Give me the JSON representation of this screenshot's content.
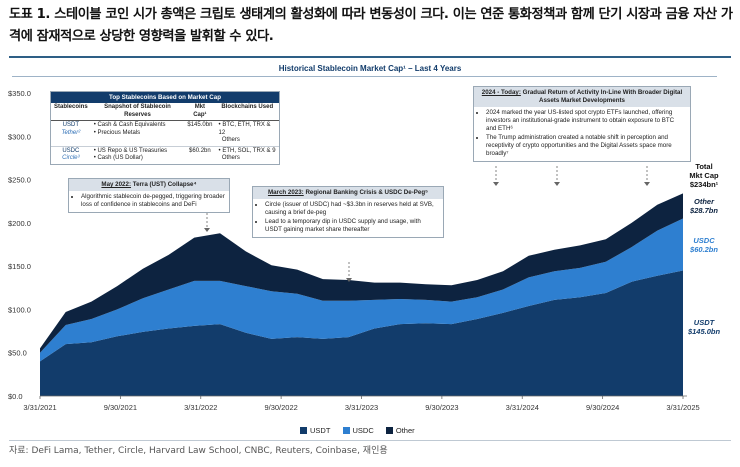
{
  "figure": {
    "title": "도표 1. 스테이블 코인 시가 총액은 크립토 생태계의 활성화에 따라 변동성이 크다. 이는 연준 통화정책과 함께 단기 시장과 금융 자산 가격에 잠재적으로 상당한 영향력을 발휘할 수 있다.",
    "source": "자료: DeFi Lama, Tether, Circle, Harvard Law School, CNBC, Reuters, Coinbase, 재인용"
  },
  "chart_data": {
    "type": "area",
    "stacked": true,
    "title": "Historical Stablecoin Market Cap¹ – Last 4 Years",
    "ylim": [
      0,
      350
    ],
    "yticks": [
      "$0.0",
      "$50.0",
      "$100.0",
      "$150.0",
      "$200.0",
      "$250.0",
      "$300.0",
      "$350.0"
    ],
    "xticks": [
      "3/31/2021",
      "9/30/2021",
      "3/31/2022",
      "9/30/2022",
      "3/31/2023",
      "9/30/2023",
      "3/31/2024",
      "9/30/2024",
      "3/31/2025"
    ],
    "x": [
      "3/31/2021",
      "5/31/2021",
      "7/31/2021",
      "9/30/2021",
      "11/30/2021",
      "1/31/2022",
      "3/31/2022",
      "4/30/2022",
      "5/31/2022",
      "7/31/2022",
      "9/30/2022",
      "11/30/2022",
      "1/31/2023",
      "3/31/2023",
      "5/31/2023",
      "7/31/2023",
      "9/30/2023",
      "11/30/2023",
      "1/31/2024",
      "3/31/2024",
      "5/31/2024",
      "7/31/2024",
      "9/30/2024",
      "11/30/2024",
      "1/31/2025",
      "3/31/2025"
    ],
    "series": [
      {
        "name": "USDT",
        "color": "#123c6b",
        "values": [
          40,
          60,
          62,
          69,
          74,
          78,
          81,
          83,
          73,
          66,
          68,
          66,
          68,
          78,
          83,
          84,
          83,
          89,
          96,
          104,
          111,
          114,
          119,
          132,
          139,
          145
        ]
      },
      {
        "name": "USDC",
        "color": "#2e7fd0",
        "values": [
          10,
          22,
          27,
          31,
          39,
          45,
          52,
          50,
          54,
          55,
          50,
          44,
          42,
          33,
          29,
          27,
          26,
          25,
          27,
          33,
          33,
          34,
          36,
          40,
          52,
          60
        ]
      },
      {
        "name": "Other",
        "color": "#0d2340",
        "values": [
          5,
          15,
          20,
          27,
          34,
          40,
          50,
          55,
          40,
          30,
          28,
          25,
          24,
          20,
          19,
          18,
          19,
          20,
          21,
          25,
          25,
          26,
          26,
          28,
          30,
          29
        ]
      }
    ],
    "legend": [
      "USDT",
      "USDC",
      "Other"
    ],
    "legend_position": "bottom"
  },
  "table": {
    "title": "Top Stablecoins Based on Market Cap",
    "headers": [
      "Stablecoins",
      "Snapshot of Stablecoin Reserves",
      "Mkt Cap¹",
      "Blockchains Used"
    ],
    "rows": [
      {
        "coin": "USDT",
        "issuer": "Tether²",
        "reserves_1": "Cash & Cash Equivalents",
        "reserves_2": "Precious Metals",
        "cap": "$145.0bn",
        "chains_1": "BTC, ETH, TRX & 12",
        "chains_2": "Others"
      },
      {
        "coin": "USDC",
        "issuer": "Circle³",
        "reserves_1": "US Repo & US Treasuries",
        "reserves_2": "Cash (US Dollar)",
        "cap": "$60.2bn",
        "chains_1": "ETH, SOL, TRX & 9",
        "chains_2": "Others"
      }
    ]
  },
  "callouts": {
    "may2022": {
      "title": "May 2022:",
      "title_rest": "Terra (UST) Collapse⁴",
      "bullets": [
        "Algorithmic stablecoin de-pegged, triggering broader loss of confidence in stablecoins and DeFi"
      ]
    },
    "mar2023": {
      "title": "March 2023:",
      "title_rest": "Regional Banking Crisis & USDC De-Peg⁵",
      "bullets": [
        "Circle (issuer of USDC) had ~$3.3bn in reserves held at SVB, causing a brief de-peg",
        "Lead to a temporary dip in USDC supply and usage, with USDT gaining market share thereafter"
      ]
    },
    "y2024": {
      "title": "2024 - Today:",
      "title_rest": "Gradual Return of Activity In-Line With Broader Digital Assets Market Developments",
      "bullets": [
        "2024 marked the year US-listed spot crypto ETFs launched, offering investors an institutional-grade instrument to obtain exposure to BTC and ETH⁶",
        "The Trump administration created a notable shift in perception and receptivity of crypto opportunities and the Digital Assets space more broadly⁷"
      ]
    }
  },
  "annotations": {
    "total_label": "Total",
    "total_label2": "Mkt Cap",
    "total_value": "$234bn¹",
    "other_label": "Other",
    "other_value": "$28.7bn",
    "usdc_label": "USDC",
    "usdc_value": "$60.2bn",
    "usdt_label": "USDT",
    "usdt_value": "$145.0bn"
  }
}
